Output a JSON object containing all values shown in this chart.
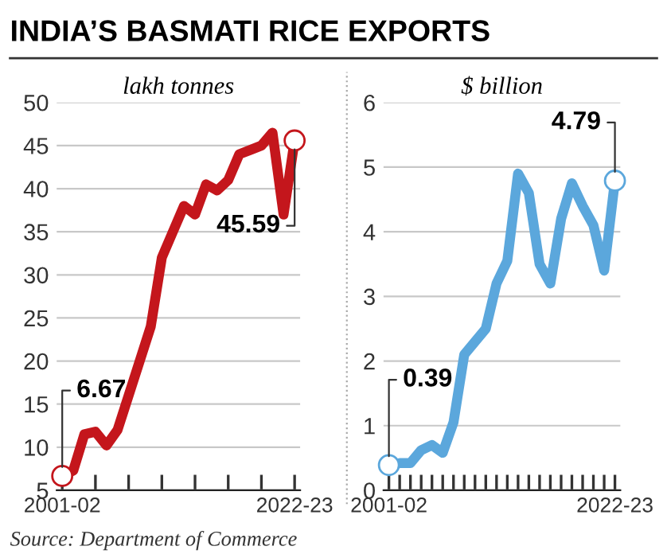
{
  "chart_data": [
    {
      "type": "line",
      "title": "INDIA’S BASMATI RICE EXPORTS",
      "subtitle": "lakh tonnes",
      "categories": [
        "2001-02",
        null,
        null,
        null,
        null,
        null,
        null,
        null,
        null,
        null,
        null,
        null,
        null,
        null,
        null,
        null,
        null,
        null,
        null,
        null,
        null,
        "2022-23"
      ],
      "series": [
        {
          "color": "#c4161c",
          "values": [
            6.67,
            7.3,
            11.5,
            11.8,
            10.2,
            12,
            16,
            20,
            24,
            32,
            35,
            38,
            37,
            40.5,
            39.8,
            41,
            44,
            44.5,
            45,
            46.5,
            37,
            45.59
          ]
        }
      ],
      "ylim": [
        5,
        50
      ],
      "yticks": [
        5,
        10,
        15,
        20,
        25,
        30,
        35,
        40,
        45,
        50
      ],
      "grid": "y",
      "line_style": "solid",
      "annotations": [
        {
          "text": "6.67",
          "x": "2001-02",
          "y": 6.67
        },
        {
          "text": "45.59",
          "x": "2022-23",
          "y": 45.59
        },
        "Source: Department of Commerce"
      ]
    },
    {
      "type": "line",
      "subtitle": "$ billion",
      "categories": [
        "2001-02",
        null,
        null,
        null,
        null,
        null,
        null,
        null,
        null,
        null,
        null,
        null,
        null,
        null,
        null,
        null,
        null,
        null,
        null,
        null,
        null,
        "2022-23"
      ],
      "series": [
        {
          "color": "#5ba7dc",
          "values": [
            0.39,
            0.42,
            0.42,
            0.62,
            0.7,
            0.58,
            1.05,
            2.1,
            2.3,
            2.5,
            3.2,
            3.55,
            4.9,
            4.6,
            3.5,
            3.2,
            4.2,
            4.75,
            4.4,
            4.1,
            3.4,
            4.79
          ]
        }
      ],
      "ylim": [
        0,
        6
      ],
      "yticks": [
        0,
        1,
        2,
        3,
        4,
        5,
        6
      ],
      "grid": "y",
      "line_style": "solid",
      "annotations": [
        {
          "text": "0.39",
          "x": "2001-02",
          "y": 0.39
        },
        {
          "text": "4.79",
          "x": "2022-23",
          "y": 4.79
        }
      ]
    }
  ]
}
